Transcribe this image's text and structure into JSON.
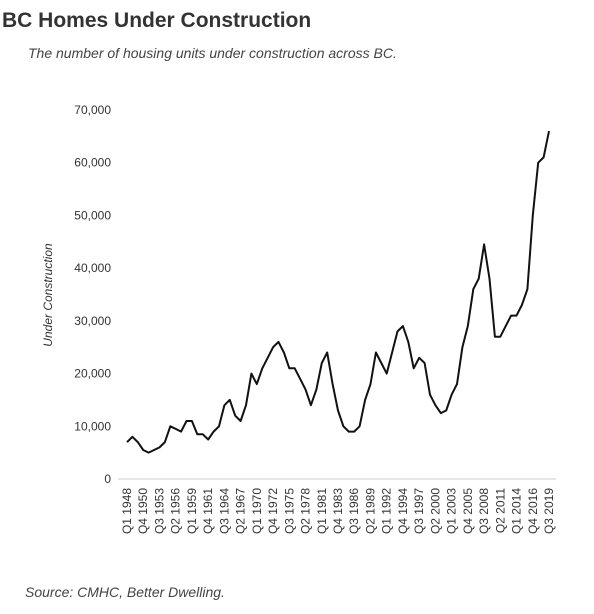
{
  "chart_data": {
    "type": "line",
    "title": "BC Homes Under Construction",
    "subtitle": "The number of housing units under construction across BC.",
    "y_label": "Under Construction",
    "source": "Source: CMHC, Better Dwelling.",
    "categories": [
      "Q1 1948",
      null,
      null,
      "Q4 1950",
      null,
      null,
      "Q3 1953",
      null,
      null,
      "Q2 1956",
      null,
      null,
      "Q1 1959",
      null,
      null,
      "Q4 1961",
      null,
      null,
      "Q3 1964",
      null,
      null,
      "Q2 1967",
      null,
      null,
      "Q1 1970",
      null,
      null,
      "Q4 1972",
      null,
      null,
      "Q3 1975",
      null,
      null,
      "Q2 1978",
      null,
      null,
      "Q1 1981",
      null,
      null,
      "Q4 1983",
      null,
      null,
      "Q3 1986",
      null,
      null,
      "Q2 1989",
      null,
      null,
      "Q1 1992",
      null,
      null,
      "Q4 1994",
      null,
      null,
      "Q3 1997",
      null,
      null,
      "Q2 2000",
      null,
      null,
      "Q1 2003",
      null,
      null,
      "Q4 2005",
      null,
      null,
      "Q3 2008",
      null,
      null,
      "Q2 2011",
      null,
      null,
      "Q1 2014",
      null,
      null,
      "Q4 2016",
      null,
      null,
      "Q3 2019"
    ],
    "values": [
      7000,
      8000,
      7000,
      5500,
      5000,
      5500,
      6000,
      7000,
      10000,
      9500,
      9000,
      11000,
      11000,
      8500,
      8500,
      7500,
      9000,
      10000,
      14000,
      15000,
      12000,
      11000,
      14000,
      20000,
      18000,
      21000,
      23000,
      25000,
      26000,
      24000,
      21000,
      21000,
      19000,
      17000,
      14000,
      17000,
      22000,
      24000,
      18000,
      13000,
      10000,
      9000,
      9000,
      10000,
      15000,
      18000,
      24000,
      22000,
      20000,
      24000,
      28000,
      29000,
      26000,
      21000,
      23000,
      22000,
      16000,
      14000,
      12500,
      13000,
      16000,
      18000,
      25000,
      29000,
      36000,
      38000,
      44500,
      38000,
      27000,
      27000,
      29000,
      31000,
      31000,
      33000,
      36000,
      50000,
      60000,
      61000,
      66000
    ],
    "color": "#111111",
    "ylim": [
      0,
      70000
    ],
    "yticks": [
      0,
      {
        "value": 10000,
        "label": "10,000"
      },
      {
        "value": 20000,
        "label": "20,000"
      },
      {
        "value": 30000,
        "label": "30,000"
      },
      {
        "value": 40000,
        "label": "40,000"
      },
      {
        "value": 50000,
        "label": "50,000"
      },
      {
        "value": 60000,
        "label": "60,000"
      },
      {
        "value": 70000,
        "label": "70,000"
      }
    ],
    "grid": false
  }
}
